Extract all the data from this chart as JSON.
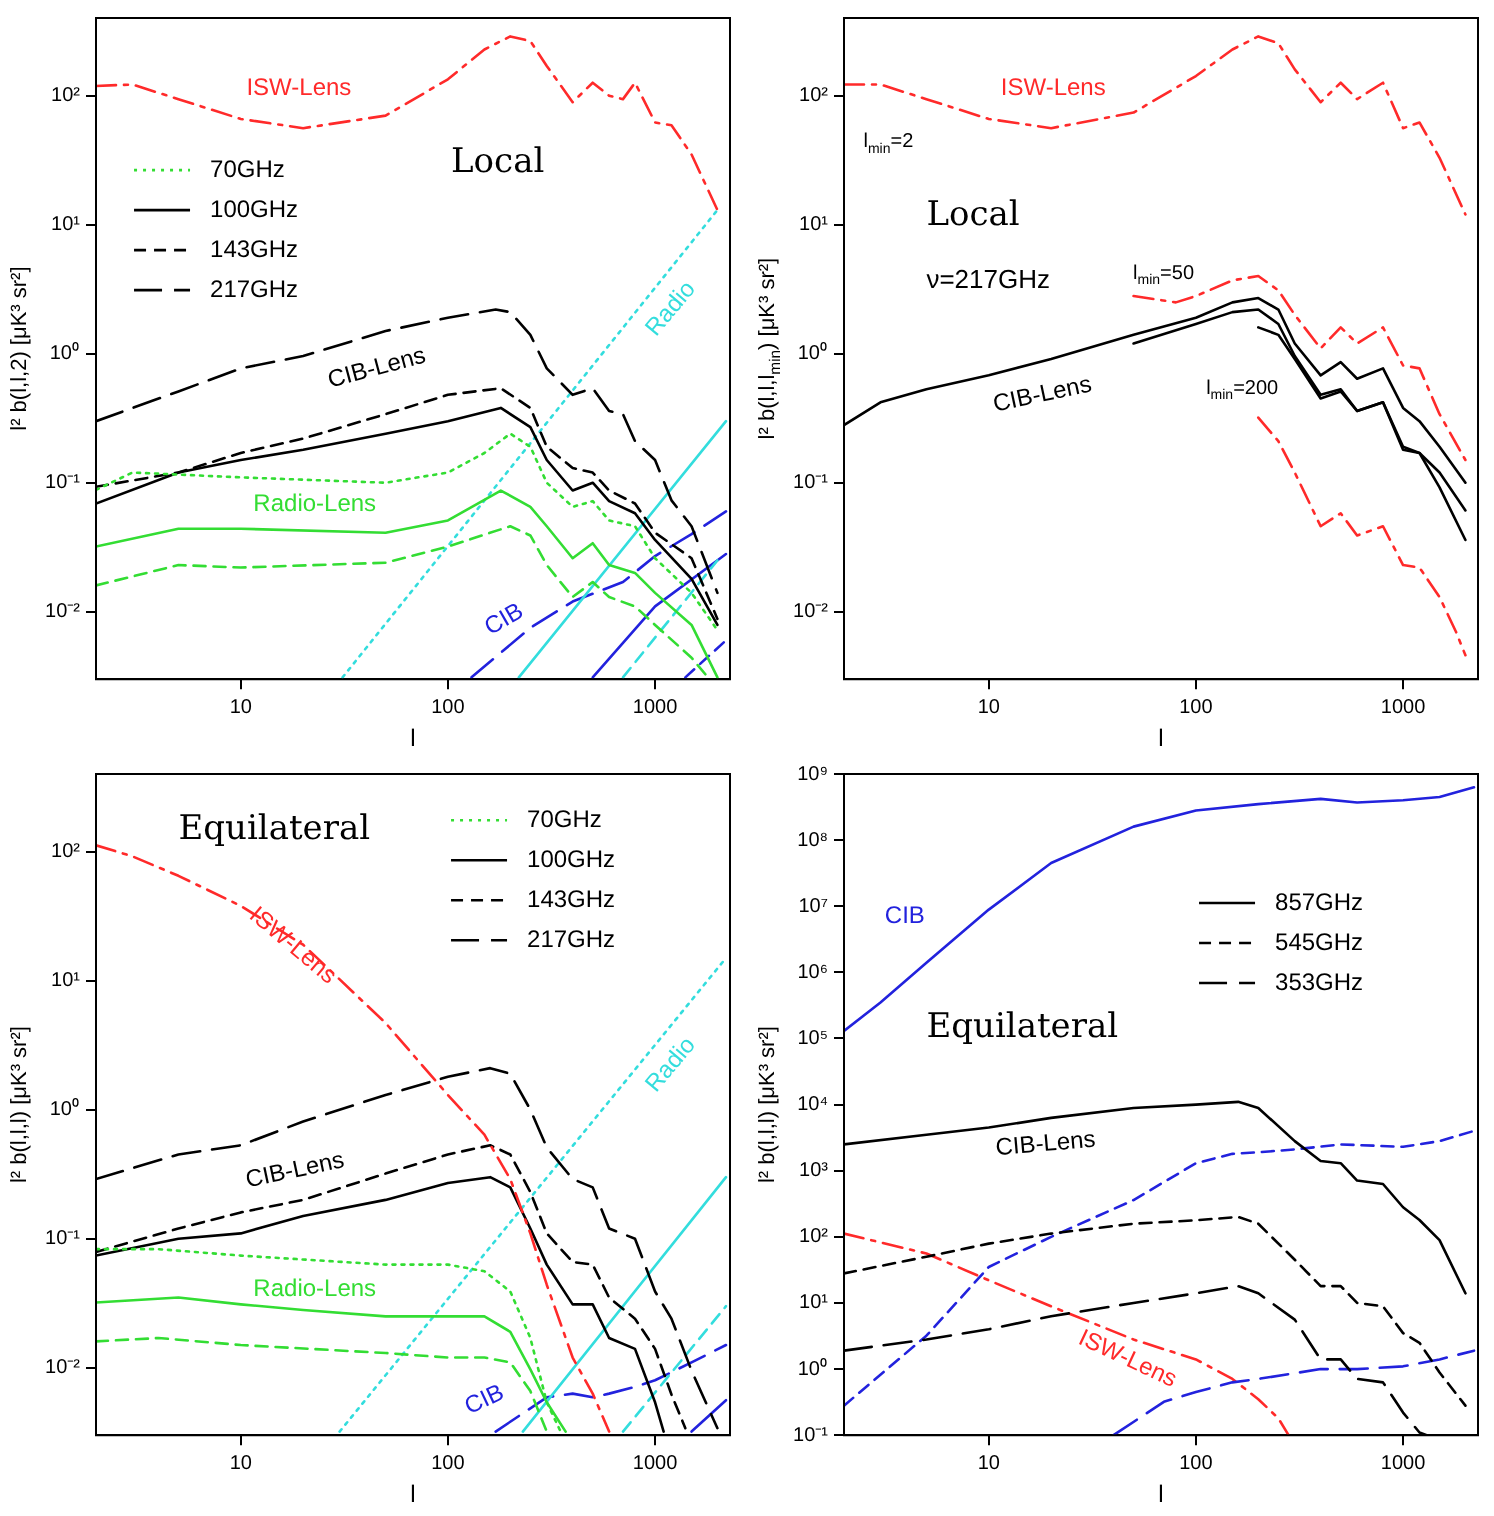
{
  "chart_data": [
    {
      "type": "line",
      "title": "Local",
      "xlabel": "l",
      "ylabel": "l² b(l,l,2) [μK³ sr²]",
      "log": "xy",
      "legend": "top left",
      "xlim": [
        2,
        2300
      ],
      "ylim": [
        0.003,
        400
      ],
      "xticks": [
        10,
        100,
        1000
      ],
      "yticks": [
        {
          "value": 0.01,
          "label": "10⁻²"
        },
        {
          "value": 0.1,
          "label": "10⁻¹"
        },
        {
          "value": 1,
          "label": "10⁰"
        },
        {
          "value": 10,
          "label": "10¹"
        },
        {
          "value": 100,
          "label": "10²"
        }
      ],
      "series": [
        {
          "color": "#ff2a2a",
          "line_style": "dashdot",
          "x": [
            2,
            3,
            5,
            10,
            20,
            50,
            100,
            150,
            200,
            250,
            300,
            400,
            500,
            600,
            700,
            800,
            1000,
            1200,
            1500,
            2000
          ],
          "values": [
            119,
            122,
            94,
            66,
            56,
            70,
            134,
            228,
            288,
            265,
            170,
            89,
            126,
            100,
            94,
            126,
            62,
            59,
            35,
            13
          ]
        },
        {
          "name": "70GHz",
          "color": "#33dd33",
          "line_style": "dotted",
          "x": [
            2,
            3,
            10,
            50,
            100,
            150,
            200,
            250,
            300,
            400,
            500,
            600,
            800,
            1000,
            1500,
            2000
          ],
          "values": [
            0.088,
            0.12,
            0.11,
            0.1,
            0.12,
            0.17,
            0.24,
            0.19,
            0.1,
            0.065,
            0.072,
            0.051,
            0.046,
            0.026,
            0.014,
            0.0072
          ]
        },
        {
          "name": "100GHz",
          "color": "#000000",
          "line_style": "solid",
          "x": [
            2,
            5,
            10,
            20,
            50,
            100,
            180,
            250,
            300,
            400,
            500,
            600,
            800,
            1000,
            1500,
            2000
          ],
          "values": [
            0.069,
            0.12,
            0.15,
            0.18,
            0.24,
            0.3,
            0.38,
            0.27,
            0.15,
            0.087,
            0.1,
            0.072,
            0.058,
            0.036,
            0.018,
            0.0079
          ]
        },
        {
          "name": "143GHz",
          "color": "#000000",
          "line_style": "dashed",
          "x": [
            2,
            5,
            10,
            20,
            50,
            100,
            180,
            250,
            300,
            400,
            500,
            600,
            800,
            1000,
            1500,
            2000
          ],
          "values": [
            0.093,
            0.12,
            0.17,
            0.22,
            0.34,
            0.48,
            0.54,
            0.38,
            0.19,
            0.13,
            0.12,
            0.087,
            0.069,
            0.041,
            0.026,
            0.0088
          ]
        },
        {
          "name": "217GHz",
          "color": "#000000",
          "line_style": "longdash",
          "x": [
            2,
            5,
            10,
            20,
            50,
            100,
            170,
            200,
            250,
            300,
            400,
            500,
            600,
            700,
            800,
            1000,
            1200,
            1500,
            2000
          ],
          "values": [
            0.3,
            0.51,
            0.77,
            0.96,
            1.5,
            1.9,
            2.2,
            2.1,
            1.4,
            0.77,
            0.48,
            0.54,
            0.36,
            0.34,
            0.21,
            0.15,
            0.073,
            0.046,
            0.014
          ]
        },
        {
          "color": "#33dd33",
          "line_style": "solid",
          "x": [
            2,
            5,
            10,
            50,
            100,
            180,
            250,
            300,
            400,
            500,
            600,
            800,
            1000,
            1500,
            2000
          ],
          "values": [
            0.032,
            0.044,
            0.044,
            0.041,
            0.051,
            0.087,
            0.065,
            0.046,
            0.026,
            0.034,
            0.023,
            0.02,
            0.014,
            0.0079,
            0.0031
          ]
        },
        {
          "color": "#33dd33",
          "line_style": "dashed",
          "x": [
            2,
            5,
            10,
            50,
            100,
            200,
            250,
            300,
            400,
            500,
            600,
            800,
            1000,
            1500,
            1800
          ],
          "values": [
            0.016,
            0.023,
            0.022,
            0.024,
            0.032,
            0.046,
            0.039,
            0.023,
            0.013,
            0.017,
            0.013,
            0.011,
            0.0079,
            0.0044,
            0.0031
          ]
        },
        {
          "color": "#33dddd",
          "line_style": "dotted",
          "x": [
            31,
            2000
          ],
          "values": [
            0.0031,
            13
          ]
        },
        {
          "color": "#33dddd",
          "line_style": "solid",
          "x": [
            220,
            2200
          ],
          "values": [
            0.0031,
            0.3
          ]
        },
        {
          "color": "#33dddd",
          "line_style": "dashed",
          "x": [
            700,
            2000
          ],
          "values": [
            0.0031,
            0.025
          ]
        },
        {
          "color": "#2222dd",
          "line_style": "longdash",
          "x": [
            130,
            250,
            400,
            700,
            1000,
            1500,
            2200
          ],
          "values": [
            0.0031,
            0.0075,
            0.012,
            0.017,
            0.027,
            0.04,
            0.06
          ]
        },
        {
          "color": "#2222dd",
          "line_style": "solid",
          "x": [
            500,
            1000,
            2200
          ],
          "values": [
            0.0031,
            0.011,
            0.028
          ]
        },
        {
          "color": "#2222dd",
          "line_style": "dashed",
          "x": [
            1400,
            2200
          ],
          "values": [
            0.0031,
            0.006
          ]
        }
      ],
      "annotations": [
        "ISW-Lens",
        "CIB-Lens",
        "Radio-Lens",
        "Radio",
        "CIB"
      ]
    },
    {
      "type": "line",
      "title": "Local",
      "subtitle": "ν=217GHz",
      "xlabel": "l",
      "ylabel": "l² b(l,l,l$_{min}$) [μK³ sr²]",
      "log": "xy",
      "xlim": [
        2,
        2300
      ],
      "ylim": [
        0.003,
        400
      ],
      "xticks": [
        10,
        100,
        1000
      ],
      "yticks": [
        {
          "value": 0.01,
          "label": "10⁻²"
        },
        {
          "value": 0.1,
          "label": "10⁻¹"
        },
        {
          "value": 1,
          "label": "10⁰"
        },
        {
          "value": 10,
          "label": "10¹"
        },
        {
          "value": 100,
          "label": "10²"
        }
      ],
      "series": [
        {
          "color": "#ff2a2a",
          "line_style": "dashdot",
          "x": [
            2,
            3,
            5,
            10,
            20,
            50,
            100,
            150,
            200,
            250,
            300,
            400,
            500,
            600,
            800,
            1000,
            1200,
            1500,
            2000
          ],
          "values": [
            122,
            122,
            94,
            66,
            56,
            74,
            142,
            228,
            288,
            255,
            160,
            89,
            126,
            94,
            126,
            56,
            62,
            33,
            12
          ]
        },
        {
          "color": "#ff2a2a",
          "line_style": "dashdot",
          "x": [
            50,
            80,
            100,
            150,
            200,
            250,
            300,
            400,
            500,
            600,
            800,
            1000,
            1200,
            1500,
            2000
          ],
          "values": [
            2.8,
            2.5,
            2.8,
            3.7,
            4.0,
            3.1,
            2.0,
            1.1,
            1.6,
            1.2,
            1.6,
            0.81,
            0.77,
            0.34,
            0.15
          ]
        },
        {
          "color": "#ff2a2a",
          "line_style": "dashdot",
          "x": [
            200,
            250,
            300,
            400,
            500,
            600,
            800,
            1000,
            1200,
            1500,
            1800,
            2000
          ],
          "values": [
            0.32,
            0.21,
            0.12,
            0.046,
            0.058,
            0.039,
            0.046,
            0.023,
            0.022,
            0.013,
            0.007,
            0.0046
          ]
        },
        {
          "color": "#000000",
          "line_style": "solid",
          "x": [
            2,
            3,
            5,
            10,
            20,
            50,
            100,
            150,
            200,
            250,
            300,
            400,
            500,
            600,
            800,
            1000,
            1200,
            1500,
            2000
          ],
          "values": [
            0.28,
            0.42,
            0.53,
            0.68,
            0.91,
            1.4,
            1.9,
            2.5,
            2.7,
            2.2,
            1.2,
            0.68,
            0.86,
            0.64,
            0.77,
            0.38,
            0.3,
            0.19,
            0.1
          ]
        },
        {
          "color": "#000000",
          "line_style": "solid",
          "x": [
            50,
            100,
            150,
            200,
            250,
            300,
            400,
            500,
            600,
            800,
            1000,
            1200,
            1500,
            2000
          ],
          "values": [
            1.2,
            1.7,
            2.1,
            2.2,
            1.7,
            0.96,
            0.48,
            0.53,
            0.36,
            0.42,
            0.19,
            0.17,
            0.12,
            0.061
          ]
        },
        {
          "color": "#000000",
          "line_style": "solid",
          "x": [
            200,
            250,
            300,
            400,
            500,
            600,
            800,
            1000,
            1200,
            1500,
            2000
          ],
          "values": [
            1.6,
            1.4,
            0.91,
            0.45,
            0.51,
            0.36,
            0.42,
            0.18,
            0.17,
            0.092,
            0.036
          ]
        }
      ],
      "annotations": [
        "ISW-Lens",
        "l$_{min}$=2",
        "l$_{min}$=50",
        "l$_{min}$=200",
        "CIB-Lens"
      ]
    },
    {
      "type": "line",
      "title": "Equilateral",
      "xlabel": "l",
      "ylabel": "l² b(l,l,l) [μK³ sr²]",
      "log": "xy",
      "legend": "top right",
      "xlim": [
        2,
        2300
      ],
      "ylim": [
        0.003,
        400
      ],
      "xticks": [
        10,
        100,
        1000
      ],
      "yticks": [
        {
          "value": 0.01,
          "label": "10⁻²"
        },
        {
          "value": 0.1,
          "label": "10⁻¹"
        },
        {
          "value": 1,
          "label": "10⁰"
        },
        {
          "value": 10,
          "label": "10¹"
        },
        {
          "value": 100,
          "label": "10²"
        }
      ],
      "series": [
        {
          "color": "#ff2a2a",
          "line_style": "dashdot",
          "x": [
            2,
            3,
            5,
            10,
            20,
            50,
            100,
            150,
            200,
            250,
            300,
            400,
            500,
            600
          ],
          "values": [
            112,
            92,
            65,
            38,
            19,
            4.7,
            1.3,
            0.64,
            0.29,
            0.11,
            0.044,
            0.012,
            0.0063,
            0.0032
          ]
        },
        {
          "name": "70GHz",
          "color": "#33dd33",
          "line_style": "dotted",
          "x": [
            2,
            4,
            10,
            50,
            100,
            150,
            200,
            250,
            300,
            350
          ],
          "values": [
            0.083,
            0.083,
            0.074,
            0.063,
            0.063,
            0.056,
            0.039,
            0.017,
            0.0054,
            0.0032
          ]
        },
        {
          "name": "100GHz",
          "color": "#000000",
          "line_style": "solid",
          "x": [
            2,
            5,
            10,
            20,
            50,
            100,
            160,
            200,
            250,
            300,
            400,
            500,
            600,
            800,
            1000,
            1100
          ],
          "values": [
            0.074,
            0.1,
            0.11,
            0.15,
            0.2,
            0.27,
            0.3,
            0.25,
            0.12,
            0.063,
            0.031,
            0.031,
            0.017,
            0.014,
            0.0054,
            0.0032
          ]
        },
        {
          "name": "143GHz",
          "color": "#000000",
          "line_style": "dashed",
          "x": [
            2,
            5,
            10,
            20,
            50,
            100,
            160,
            200,
            250,
            300,
            400,
            500,
            600,
            800,
            1000,
            1200,
            1400
          ],
          "values": [
            0.079,
            0.12,
            0.16,
            0.2,
            0.32,
            0.45,
            0.53,
            0.45,
            0.23,
            0.11,
            0.066,
            0.063,
            0.035,
            0.024,
            0.014,
            0.0062,
            0.0034
          ]
        },
        {
          "name": "217GHz",
          "color": "#000000",
          "line_style": "longdash",
          "x": [
            2,
            5,
            10,
            20,
            50,
            100,
            160,
            200,
            250,
            300,
            400,
            500,
            600,
            800,
            1000,
            1200,
            1500,
            2000
          ],
          "values": [
            0.29,
            0.45,
            0.53,
            0.81,
            1.3,
            1.8,
            2.1,
            1.9,
            1.0,
            0.51,
            0.29,
            0.25,
            0.12,
            0.1,
            0.039,
            0.024,
            0.0095,
            0.0034
          ]
        },
        {
          "color": "#33dd33",
          "line_style": "solid",
          "x": [
            2,
            5,
            10,
            20,
            50,
            100,
            150,
            200,
            250,
            300,
            370
          ],
          "values": [
            0.032,
            0.035,
            0.031,
            0.028,
            0.025,
            0.025,
            0.025,
            0.019,
            0.0097,
            0.0054,
            0.0032
          ]
        },
        {
          "color": "#33dd33",
          "line_style": "dashed",
          "x": [
            2,
            4,
            10,
            50,
            100,
            150,
            200,
            250,
            300
          ],
          "values": [
            0.016,
            0.017,
            0.015,
            0.013,
            0.012,
            0.012,
            0.011,
            0.0066,
            0.0032
          ]
        },
        {
          "color": "#33dddd",
          "line_style": "dotted",
          "x": [
            30,
            2200
          ],
          "values": [
            0.0032,
            15
          ]
        },
        {
          "color": "#33dddd",
          "line_style": "solid",
          "x": [
            230,
            2200
          ],
          "values": [
            0.0032,
            0.3
          ]
        },
        {
          "color": "#33dddd",
          "line_style": "dashed",
          "x": [
            700,
            2200
          ],
          "values": [
            0.0032,
            0.03
          ]
        },
        {
          "color": "#2222dd",
          "line_style": "longdash",
          "x": [
            170,
            300,
            400,
            500,
            600,
            800,
            1000,
            1500,
            2200
          ],
          "values": [
            0.0032,
            0.0059,
            0.0063,
            0.0059,
            0.0063,
            0.0071,
            0.008,
            0.011,
            0.015
          ]
        },
        {
          "color": "#2222dd",
          "line_style": "solid",
          "x": [
            1500,
            2200
          ],
          "values": [
            0.0032,
            0.0056
          ]
        }
      ],
      "annotations": [
        "ISW-Lens",
        "CIB-Lens",
        "Radio-Lens",
        "Radio",
        "CIB"
      ]
    },
    {
      "type": "line",
      "title": "Equilateral",
      "xlabel": "l",
      "ylabel": "l² b(l,l,l) [μK³ sr²]",
      "log": "xy",
      "legend": "right",
      "xlim": [
        2,
        2300
      ],
      "ylim": [
        0.1,
        1000000000
      ],
      "xticks": [
        10,
        100,
        1000
      ],
      "yticks": [
        {
          "value": 0.1,
          "label": "10⁻¹"
        },
        {
          "value": 1,
          "label": "10⁰"
        },
        {
          "value": 10,
          "label": "10¹"
        },
        {
          "value": 100,
          "label": "10²"
        },
        {
          "value": 1000,
          "label": "10³"
        },
        {
          "value": 10000,
          "label": "10⁴"
        },
        {
          "value": 100000,
          "label": "10⁵"
        },
        {
          "value": 1000000,
          "label": "10⁶"
        },
        {
          "value": 10000000,
          "label": "10⁷"
        },
        {
          "value": 100000000,
          "label": "10⁸"
        },
        {
          "value": 1000000000,
          "label": "10⁹"
        }
      ],
      "series": [
        {
          "color": "#2222dd",
          "line_style": "solid",
          "x": [
            2,
            3,
            5,
            10,
            20,
            50,
            100,
            200,
            400,
            600,
            1000,
            1500,
            2200
          ],
          "values": [
            130000,
            350000,
            1400000,
            8900000,
            45000000,
            160000000,
            280000000,
            350000000,
            420000000,
            370000000,
            400000000,
            450000000,
            630000000
          ]
        },
        {
          "name": "857GHz",
          "color": "#000000",
          "line_style": "solid",
          "x": [
            2,
            5,
            10,
            20,
            50,
            100,
            160,
            200,
            300,
            400,
            500,
            600,
            800,
            1000,
            1200,
            1500,
            2000
          ],
          "values": [
            2500,
            3500,
            4500,
            6300,
            8900,
            10000,
            11000,
            8900,
            2800,
            1400,
            1300,
            710,
            630,
            280,
            180,
            89,
            14
          ]
        },
        {
          "name": "545GHz",
          "color": "#000000",
          "line_style": "dashed",
          "x": [
            2,
            5,
            10,
            20,
            50,
            100,
            160,
            200,
            300,
            400,
            500,
            600,
            800,
            1000,
            1200,
            1500,
            2000
          ],
          "values": [
            28,
            50,
            79,
            112,
            158,
            178,
            200,
            158,
            45,
            18,
            18,
            10,
            8.9,
            3.5,
            2.5,
            0.89,
            0.28
          ]
        },
        {
          "name": "353GHz",
          "color": "#000000",
          "line_style": "longdash",
          "x": [
            2,
            5,
            10,
            20,
            50,
            100,
            160,
            200,
            300,
            400,
            500,
            600,
            800,
            1000,
            1200,
            1300
          ],
          "values": [
            1.9,
            2.8,
            4.0,
            6.3,
            10,
            14,
            18,
            14,
            5.6,
            1.4,
            1.4,
            0.71,
            0.63,
            0.22,
            0.11,
            0.1
          ]
        },
        {
          "color": "#2222dd",
          "line_style": "dashed",
          "x": [
            2,
            5,
            10,
            20,
            50,
            100,
            150,
            200,
            300,
            500,
            1000,
            1500,
            2200
          ],
          "values": [
            0.28,
            3.2,
            35,
            100,
            360,
            1300,
            1800,
            1900,
            2100,
            2500,
            2300,
            2800,
            4000
          ]
        },
        {
          "color": "#2222dd",
          "line_style": "longdash",
          "x": [
            40,
            70,
            100,
            150,
            200,
            400,
            600,
            1000,
            1500,
            2200
          ],
          "values": [
            0.1,
            0.32,
            0.45,
            0.63,
            0.71,
            1.0,
            1.0,
            1.1,
            1.4,
            1.9
          ]
        },
        {
          "color": "#ff2a2a",
          "line_style": "dashdot",
          "x": [
            2,
            5,
            10,
            20,
            50,
            100,
            150,
            200,
            250,
            280
          ],
          "values": [
            112,
            56,
            22,
            8.9,
            2.8,
            1.4,
            0.71,
            0.35,
            0.18,
            0.1
          ]
        }
      ],
      "annotations": [
        "CIB",
        "CIB-Lens",
        "ISW-Lens"
      ]
    }
  ]
}
